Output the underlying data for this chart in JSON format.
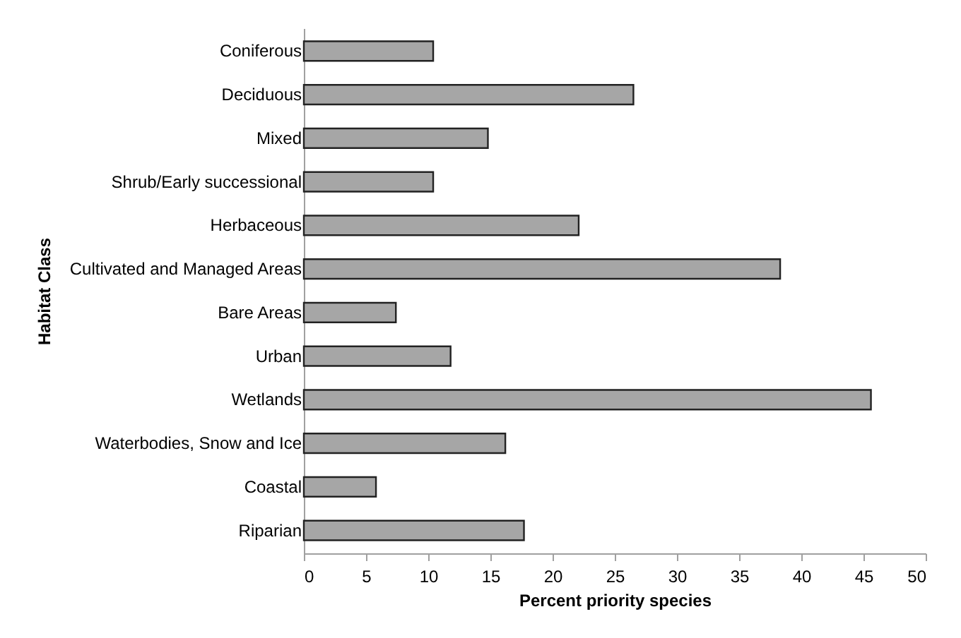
{
  "chart_data": {
    "type": "bar",
    "orientation": "horizontal",
    "xlabel": "Percent priority species",
    "ylabel": "Habitat Class",
    "categories": [
      "Coniferous",
      "Deciduous",
      "Mixed",
      "Shrub/Early successional",
      "Herbaceous",
      "Cultivated and Managed Areas",
      "Bare Areas",
      "Urban",
      "Wetlands",
      "Waterbodies, Snow and Ice",
      "Coastal",
      "Riparian"
    ],
    "values": [
      10.4,
      26.5,
      14.8,
      10.4,
      22.1,
      38.3,
      7.4,
      11.8,
      45.6,
      16.2,
      5.8,
      17.7
    ],
    "color": "#a6a6a6",
    "xlim": [
      0,
      50
    ],
    "xticks": [
      0,
      5,
      10,
      15,
      20,
      25,
      30,
      35,
      40,
      45,
      50
    ],
    "grid": false
  }
}
